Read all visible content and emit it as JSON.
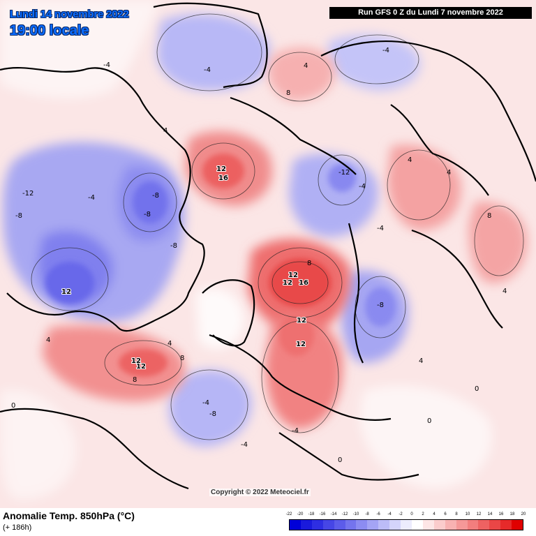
{
  "header": {
    "date_line": "Lundi 14 novembre 2022",
    "time_line": "19:00 locale",
    "run_info": "Run GFS 0 Z du Lundi 7 novembre 2022"
  },
  "footer": {
    "title": "Anomalie Temp. 850hPa (°C)",
    "subtitle": "(+ 186h)",
    "copyright": "Copyright © 2022 Meteociel.fr"
  },
  "legend": {
    "ticks": [
      "-22",
      "-20",
      "-18",
      "-16",
      "-14",
      "-12",
      "-10",
      "-8",
      "-6",
      "-4",
      "-2",
      "0",
      "2",
      "4",
      "6",
      "8",
      "10",
      "12",
      "14",
      "16",
      "18",
      "20"
    ],
    "colors": [
      "#0000d8",
      "#1a1adc",
      "#2e2ee2",
      "#4646e6",
      "#5c5cea",
      "#7474ee",
      "#8c8cf2",
      "#a4a4f5",
      "#bcbcf8",
      "#d4d4fb",
      "#ececfd",
      "#ffffff",
      "#fde6e6",
      "#fbcccc",
      "#f8b2b2",
      "#f59898",
      "#f27e7e",
      "#ee6262",
      "#ea4646",
      "#e62a2a",
      "#e00000"
    ]
  },
  "map": {
    "hot_labels": [
      "12",
      "16",
      "12",
      "16",
      "12",
      "12",
      "12",
      "12",
      "12",
      "12"
    ],
    "anomaly_labels": [
      "-4",
      "-8",
      "-12",
      "-8",
      "-4",
      "4",
      "8",
      "-4",
      "-8",
      "4",
      "0",
      "-4",
      "4",
      "8",
      "-8",
      "0",
      "4",
      "-4",
      "8",
      "4",
      "-4",
      "-8",
      "0",
      "4",
      "-4",
      "8",
      "-12",
      "-8",
      "-4",
      "4",
      "0",
      "4",
      "-4",
      "8"
    ]
  }
}
